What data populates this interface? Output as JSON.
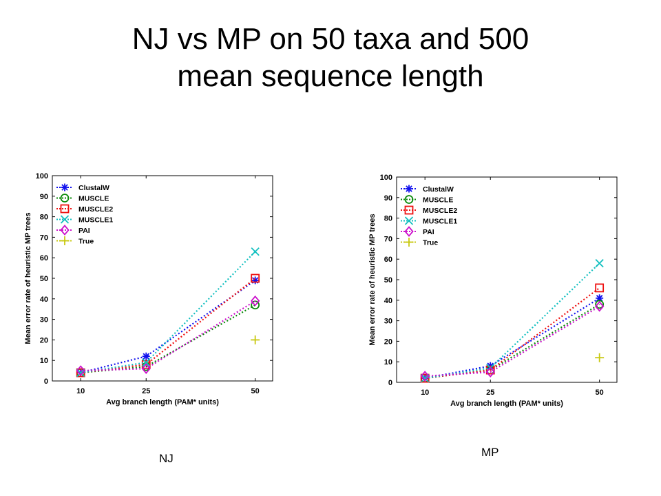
{
  "title_line1": "NJ vs MP on 50 taxa and 500",
  "title_line2": "mean sequence length",
  "chart_data": [
    {
      "type": "line",
      "caption": "NJ",
      "xlabel": "Avg branch length (PAM* units)",
      "ylabel": "Mean error rate of heuristic MP trees",
      "x": [
        10,
        25,
        50
      ],
      "xticks": [
        10,
        25,
        50
      ],
      "ylim": [
        0,
        100
      ],
      "yticks": [
        0,
        10,
        20,
        30,
        40,
        50,
        60,
        70,
        80,
        90,
        100
      ],
      "legend_position": "top-left",
      "series": [
        {
          "name": "ClustalW",
          "color": "#1010ee",
          "marker": "star",
          "values": [
            4,
            12,
            49
          ]
        },
        {
          "name": "MUSCLE",
          "color": "#0a8a0a",
          "marker": "circle",
          "values": [
            4,
            7,
            37
          ]
        },
        {
          "name": "MUSCLE2",
          "color": "#ee1010",
          "marker": "square",
          "values": [
            4,
            8,
            50
          ]
        },
        {
          "name": "MUSCLE1",
          "color": "#10bfbf",
          "marker": "x",
          "values": [
            4,
            9,
            63
          ]
        },
        {
          "name": "PAI",
          "color": "#cc10cc",
          "marker": "diamond",
          "values": [
            5,
            6,
            39
          ]
        },
        {
          "name": "True",
          "color": "#c8c810",
          "marker": "plus",
          "values": [
            null,
            null,
            20
          ]
        }
      ]
    },
    {
      "type": "line",
      "caption": "MP",
      "xlabel": "Avg branch length (PAM* units)",
      "ylabel": "Mean error rate of heuristic MP trees",
      "x": [
        10,
        25,
        50
      ],
      "xticks": [
        10,
        25,
        50
      ],
      "ylim": [
        0,
        100
      ],
      "yticks": [
        0,
        10,
        20,
        30,
        40,
        50,
        60,
        70,
        80,
        90,
        100
      ],
      "legend_position": "top-left",
      "series": [
        {
          "name": "ClustalW",
          "color": "#1010ee",
          "marker": "star",
          "values": [
            2,
            8,
            41
          ]
        },
        {
          "name": "MUSCLE",
          "color": "#0a8a0a",
          "marker": "circle",
          "values": [
            2,
            6,
            38
          ]
        },
        {
          "name": "MUSCLE2",
          "color": "#ee1010",
          "marker": "square",
          "values": [
            2,
            6,
            46
          ]
        },
        {
          "name": "MUSCLE1",
          "color": "#10bfbf",
          "marker": "x",
          "values": [
            2,
            7,
            58
          ]
        },
        {
          "name": "PAI",
          "color": "#cc10cc",
          "marker": "diamond",
          "values": [
            3,
            5,
            37
          ]
        },
        {
          "name": "True",
          "color": "#c8c810",
          "marker": "plus",
          "values": [
            null,
            null,
            12
          ]
        }
      ]
    }
  ]
}
